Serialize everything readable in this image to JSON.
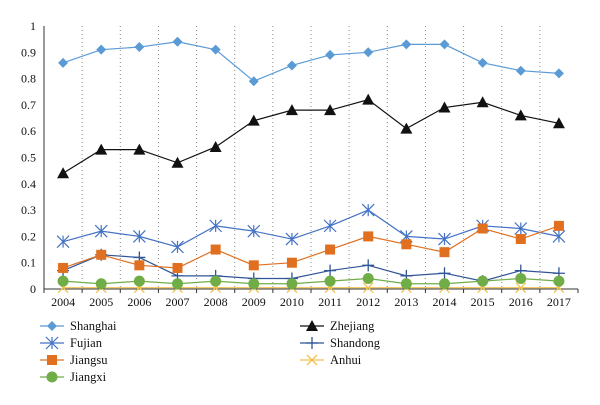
{
  "chart_data": {
    "type": "line",
    "title": "",
    "xlabel": "",
    "ylabel": "",
    "x": [
      "2004",
      "2005",
      "2006",
      "2007",
      "2008",
      "2009",
      "2010",
      "2011",
      "2012",
      "2013",
      "2014",
      "2015",
      "2016",
      "2017"
    ],
    "y_ticks": [
      "0",
      "0.1",
      "0.2",
      "0.3",
      "0.4",
      "0.5",
      "0.6",
      "0.7",
      "0.8",
      "0.9",
      "1"
    ],
    "ylim": [
      0,
      1
    ],
    "grid": "vertical dotted",
    "legend_position": "bottom",
    "series": [
      {
        "name": "Shanghai",
        "color": "#5B9BD5",
        "marker": "diamond",
        "values": [
          0.86,
          0.91,
          0.92,
          0.94,
          0.91,
          0.79,
          0.85,
          0.89,
          0.9,
          0.93,
          0.93,
          0.86,
          0.83,
          0.82
        ]
      },
      {
        "name": "Zhejiang",
        "color": "#111111",
        "marker": "triangle",
        "values": [
          0.44,
          0.53,
          0.53,
          0.48,
          0.54,
          0.64,
          0.68,
          0.68,
          0.72,
          0.61,
          0.69,
          0.71,
          0.66,
          0.63
        ]
      },
      {
        "name": "Fujian",
        "color": "#4472C4",
        "marker": "x-star",
        "values": [
          0.18,
          0.22,
          0.2,
          0.16,
          0.24,
          0.22,
          0.19,
          0.24,
          0.3,
          0.2,
          0.19,
          0.24,
          0.23,
          0.2
        ]
      },
      {
        "name": "Shandong",
        "color": "#2F5597",
        "marker": "plus",
        "values": [
          0.07,
          0.13,
          0.12,
          0.05,
          0.05,
          0.04,
          0.04,
          0.07,
          0.09,
          0.05,
          0.06,
          0.03,
          0.07,
          0.06
        ]
      },
      {
        "name": "Jiangsu",
        "color": "#E07020",
        "marker": "square",
        "values": [
          0.08,
          0.13,
          0.09,
          0.08,
          0.15,
          0.09,
          0.1,
          0.15,
          0.2,
          0.17,
          0.14,
          0.23,
          0.19,
          0.24
        ]
      },
      {
        "name": "Anhui",
        "color": "#F2C14E",
        "marker": "x",
        "values": [
          0.005,
          0.005,
          0.005,
          0.005,
          0.005,
          0.005,
          0.005,
          0.005,
          0.005,
          0.005,
          0.005,
          0.005,
          0.005,
          0.005
        ]
      },
      {
        "name": "Jiangxi",
        "color": "#70AD47",
        "marker": "circle",
        "values": [
          0.03,
          0.02,
          0.03,
          0.02,
          0.03,
          0.02,
          0.02,
          0.03,
          0.04,
          0.02,
          0.02,
          0.03,
          0.04,
          0.03
        ]
      }
    ]
  }
}
